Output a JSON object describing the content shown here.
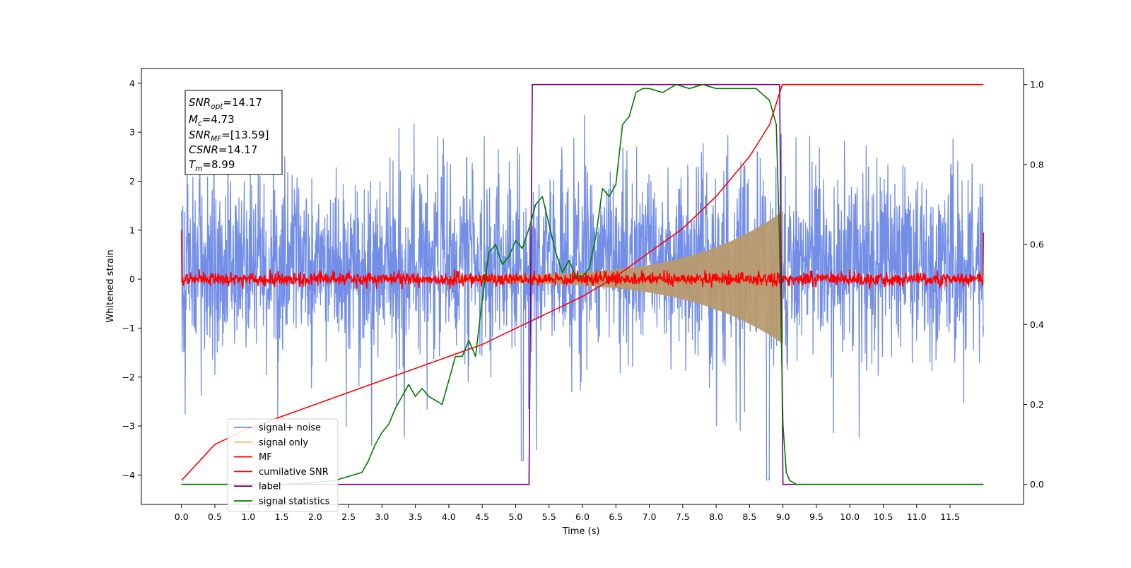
{
  "chart_data": {
    "type": "line",
    "xlabel": "Time (s)",
    "ylabel": "Whitened strain",
    "xlim": [
      -0.6,
      12.6
    ],
    "ylim": [
      -4.6,
      4.3
    ],
    "ylim_right": [
      -0.05,
      1.04
    ],
    "x_ticks": [
      "0.0",
      "0.5",
      "1.0",
      "1.5",
      "2.0",
      "2.5",
      "3.0",
      "3.5",
      "4.0",
      "4.5",
      "5.0",
      "5.5",
      "6.0",
      "6.5",
      "7.0",
      "7.5",
      "8.0",
      "8.5",
      "9.0",
      "9.5",
      "10.0",
      "10.5",
      "11.0",
      "11.5"
    ],
    "y_ticks_left": [
      "−4",
      "−3",
      "−2",
      "−1",
      "0",
      "1",
      "2",
      "3",
      "4"
    ],
    "y_ticks_right": [
      "0.0",
      "0.2",
      "0.4",
      "0.6",
      "0.8",
      "1.0"
    ],
    "legend_position": "lower-left",
    "grid": false,
    "annotation": {
      "lines": [
        {
          "var": "SNR",
          "sub": "opt",
          "value": "=14.17"
        },
        {
          "var": "M",
          "sub": "c",
          "value": "=4.73"
        },
        {
          "var": "SNR",
          "sub": "MF",
          "value": "=[13.59]"
        },
        {
          "var": "CSNR",
          "sub": "",
          "value": "=14.17"
        },
        {
          "var": "T",
          "sub": "m",
          "value": "=8.99"
        }
      ]
    },
    "series": [
      {
        "name": "signal+ noise",
        "color": "#6b88e6",
        "axis": "left",
        "kind": "noise band",
        "x_range": [
          0.0,
          12.0
        ],
        "envelope": [
          -2.6,
          3.3
        ]
      },
      {
        "name": "signal only",
        "color": "#ffbf70",
        "axis": "left",
        "kind": "chirp",
        "x_range": [
          4.0,
          9.0
        ],
        "peak_amplitude": 1.2
      },
      {
        "name": "MF",
        "color": "#ff0000",
        "axis": "left",
        "kind": "noise around zero",
        "x_range": [
          0.0,
          12.0
        ],
        "amplitude": 0.2
      },
      {
        "name": "cumilative SNR",
        "color": "#ff0000",
        "axis": "right",
        "x": [
          0.0,
          0.5,
          1.0,
          1.5,
          2.0,
          2.5,
          3.0,
          3.5,
          4.0,
          4.5,
          5.0,
          5.5,
          6.0,
          6.5,
          7.0,
          7.5,
          8.0,
          8.5,
          8.8,
          8.99,
          9.0,
          12.0
        ],
        "y": [
          0.01,
          0.1,
          0.14,
          0.17,
          0.2,
          0.23,
          0.26,
          0.29,
          0.32,
          0.35,
          0.39,
          0.43,
          0.47,
          0.52,
          0.58,
          0.64,
          0.72,
          0.82,
          0.9,
          1.0,
          1.0,
          1.0
        ]
      },
      {
        "name": "label",
        "color": "#7a007a",
        "axis": "right",
        "x": [
          0.0,
          5.2,
          5.25,
          8.95,
          9.0,
          12.0
        ],
        "y": [
          0.0,
          0.0,
          1.0,
          1.0,
          0.0,
          0.0
        ]
      },
      {
        "name": "signal statistics",
        "color": "#007a00",
        "axis": "right",
        "x": [
          0.0,
          0.5,
          1.0,
          1.5,
          2.0,
          2.3,
          2.5,
          2.7,
          2.8,
          2.9,
          3.0,
          3.1,
          3.2,
          3.3,
          3.4,
          3.5,
          3.6,
          3.7,
          3.8,
          3.9,
          4.0,
          4.1,
          4.2,
          4.3,
          4.4,
          4.5,
          4.6,
          4.7,
          4.8,
          4.9,
          5.0,
          5.1,
          5.2,
          5.3,
          5.4,
          5.5,
          5.6,
          5.7,
          5.8,
          5.9,
          6.0,
          6.1,
          6.2,
          6.3,
          6.4,
          6.5,
          6.6,
          6.7,
          6.8,
          6.9,
          7.0,
          7.2,
          7.4,
          7.6,
          7.8,
          8.0,
          8.2,
          8.4,
          8.6,
          8.8,
          8.9,
          8.95,
          9.0,
          9.05,
          9.1,
          9.2,
          9.5,
          12.0
        ],
        "y": [
          0.0,
          0.0,
          0.0,
          0.0,
          0.005,
          0.01,
          0.02,
          0.03,
          0.06,
          0.1,
          0.13,
          0.15,
          0.19,
          0.22,
          0.25,
          0.22,
          0.24,
          0.22,
          0.21,
          0.2,
          0.26,
          0.32,
          0.32,
          0.36,
          0.32,
          0.46,
          0.58,
          0.6,
          0.55,
          0.57,
          0.61,
          0.59,
          0.64,
          0.7,
          0.72,
          0.65,
          0.58,
          0.53,
          0.56,
          0.52,
          0.52,
          0.54,
          0.62,
          0.74,
          0.72,
          0.75,
          0.9,
          0.92,
          0.98,
          0.99,
          0.99,
          0.98,
          1.0,
          0.99,
          1.0,
          0.99,
          0.99,
          0.99,
          0.99,
          0.96,
          0.9,
          0.6,
          0.15,
          0.03,
          0.01,
          0.0,
          0.0,
          0.0
        ]
      }
    ]
  }
}
